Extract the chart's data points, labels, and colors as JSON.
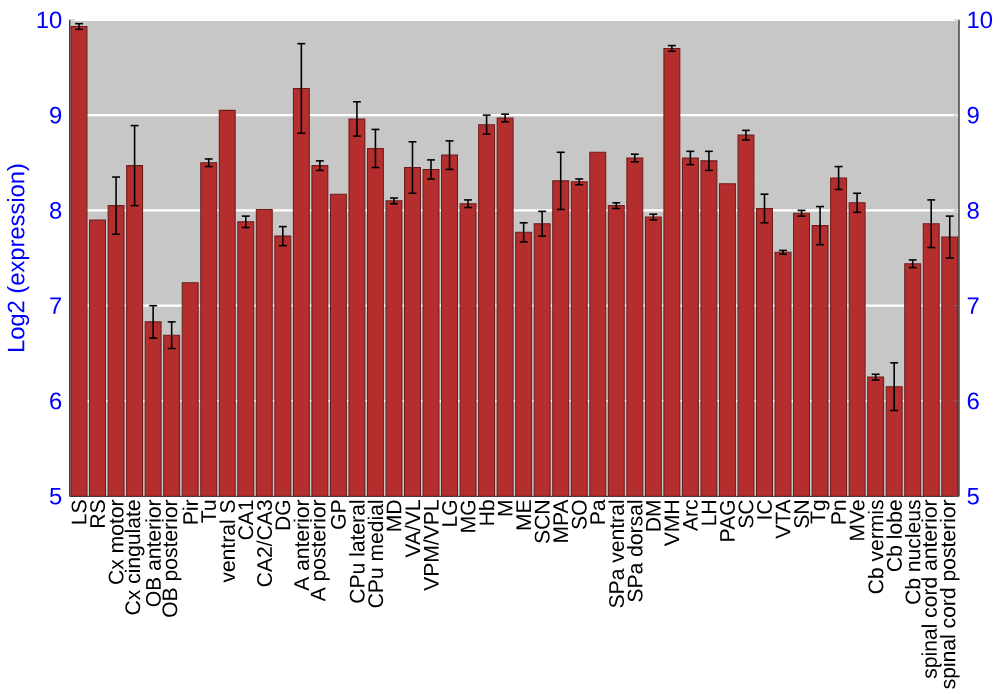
{
  "chart_data": {
    "type": "bar",
    "ylabel": "Log2 (expression)",
    "color": "#b52e2e",
    "grid": "y",
    "categories": [
      "LS",
      "RS",
      "Cx motor",
      "Cx cingulate",
      "OB anterior",
      "OB posterior",
      "Pir",
      "Tu",
      "ventral S",
      "CA1",
      "CA2/CA3",
      "DG",
      "A anterior",
      "A posterior",
      "GP",
      "CPu lateral",
      "CPu medial",
      "MD",
      "VA/VL",
      "VPM/VPL",
      "LG",
      "MG",
      "Hb",
      "M",
      "ME",
      "SCN",
      "MPA",
      "SO",
      "Pa",
      "SPa ventral",
      "SPa dorsal",
      "DM",
      "VMH",
      "Arc",
      "LH",
      "PAG",
      "SC",
      "IC",
      "VTA",
      "SN",
      "Tg",
      "Pn",
      "MVe",
      "Cb vermis",
      "Cb lobe",
      "Cb nucleus",
      "spinal cord anterior",
      "spinal cord posterior"
    ],
    "values": [
      9.93,
      7.9,
      8.05,
      8.47,
      6.83,
      6.69,
      7.24,
      8.5,
      9.05,
      7.88,
      8.01,
      7.73,
      9.28,
      8.47,
      8.17,
      8.96,
      8.65,
      8.1,
      8.45,
      8.43,
      8.58,
      8.07,
      8.9,
      8.97,
      7.77,
      7.86,
      8.31,
      8.3,
      8.61,
      8.05,
      8.55,
      7.93,
      9.7,
      8.55,
      8.52,
      8.28,
      8.79,
      8.02,
      7.56,
      7.97,
      7.84,
      8.34,
      8.08,
      6.25,
      6.15,
      7.44,
      7.86,
      7.72
    ],
    "errors": [
      0.03,
      null,
      0.3,
      0.42,
      0.17,
      0.14,
      null,
      0.04,
      null,
      0.06,
      null,
      0.1,
      0.47,
      0.05,
      null,
      0.18,
      0.2,
      0.03,
      0.27,
      0.1,
      0.15,
      0.04,
      0.1,
      0.04,
      0.1,
      0.13,
      0.3,
      0.03,
      null,
      0.03,
      0.04,
      0.03,
      0.03,
      0.07,
      0.1,
      null,
      0.05,
      0.15,
      0.02,
      0.03,
      0.2,
      0.12,
      0.1,
      0.03,
      0.25,
      0.04,
      0.25,
      0.22
    ],
    "ylim": [
      5,
      10
    ],
    "yticks": [
      5,
      6,
      7,
      8,
      9,
      10
    ],
    "y2lim": [
      5,
      10
    ],
    "y2ticks": [
      5,
      6,
      7,
      8,
      9,
      10
    ]
  }
}
